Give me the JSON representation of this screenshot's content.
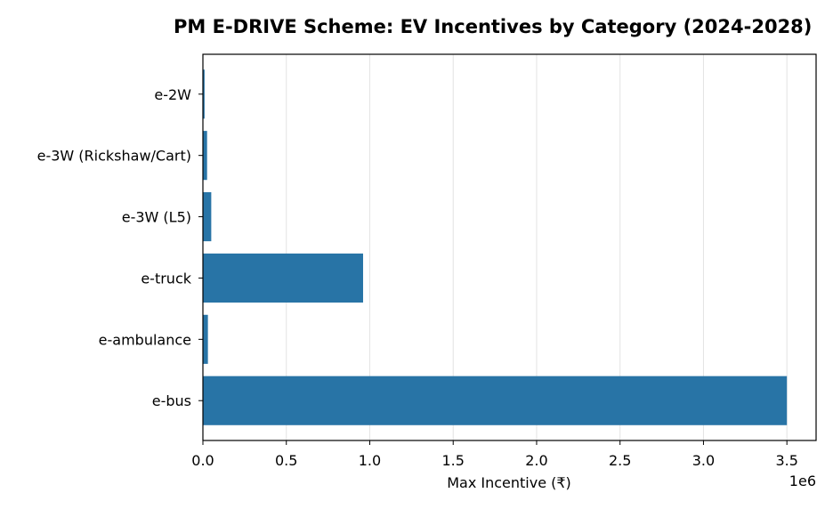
{
  "chart_data": {
    "type": "bar",
    "orientation": "horizontal",
    "title": "PM E-DRIVE Scheme: EV Incentives by Category (2024-2028)",
    "xlabel": "Max Incentive (₹)",
    "ylabel": "",
    "x_multiplier_label": "1e6",
    "xlim": [
      0,
      3675000
    ],
    "x_ticks": [
      0,
      500000,
      1000000,
      1500000,
      2000000,
      2500000,
      3000000,
      3500000
    ],
    "x_tick_labels": [
      "0.0",
      "0.5",
      "1.0",
      "1.5",
      "2.0",
      "2.5",
      "3.0",
      "3.5"
    ],
    "categories": [
      "e-2W",
      "e-3W (Rickshaw/Cart)",
      "e-3W (L5)",
      "e-truck",
      "e-ambulance",
      "e-bus"
    ],
    "values": [
      10000,
      25000,
      50000,
      960000,
      30000,
      3500000
    ],
    "bar_color": "#2874a6",
    "grid": "vertical"
  }
}
